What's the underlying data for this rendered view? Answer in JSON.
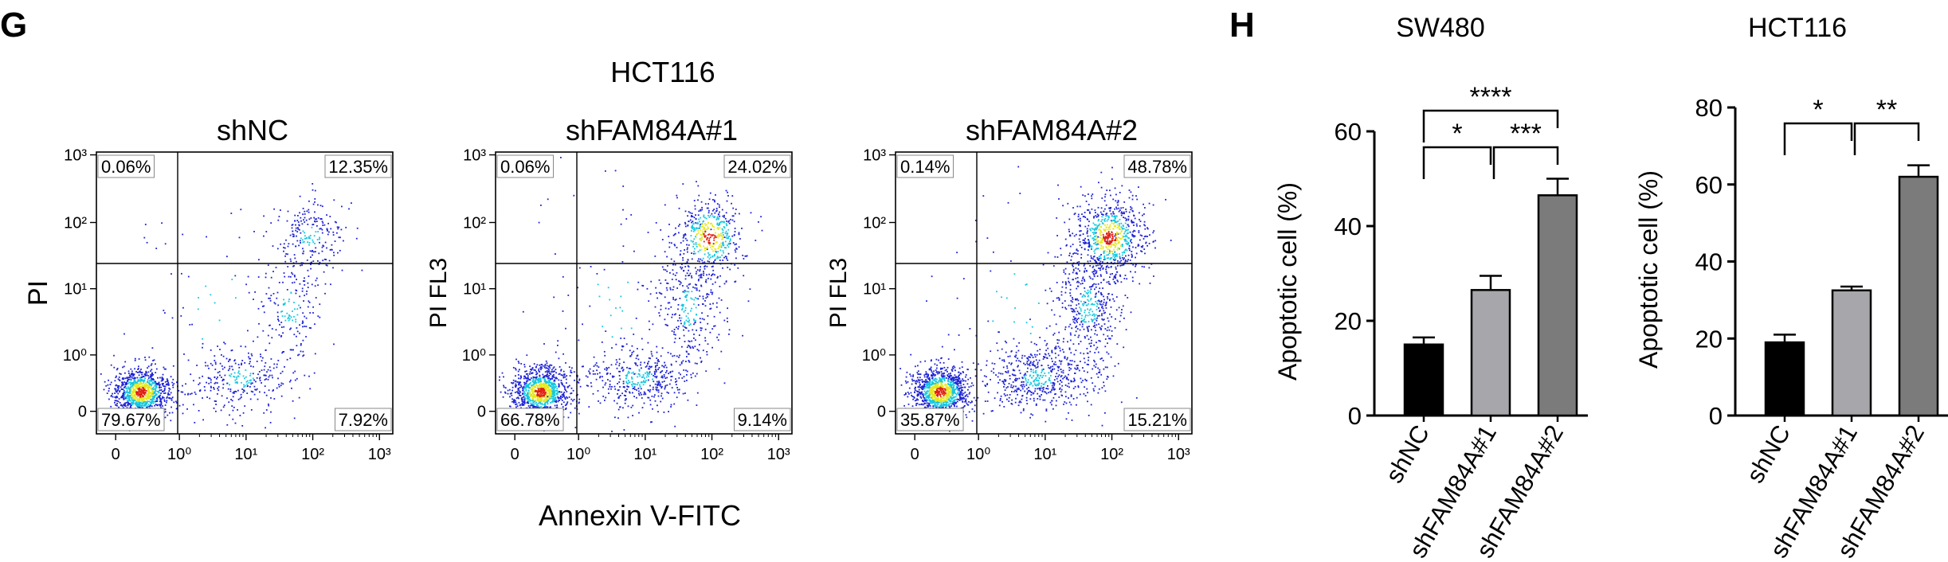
{
  "panel_g": {
    "label": "G",
    "group_title": "HCT116",
    "xlabel": "Annexin V-FITC",
    "x_tick_labels": [
      "0",
      "10⁰",
      "10¹",
      "10²",
      "10³"
    ],
    "y_tick_labels": [
      "0",
      "10⁰",
      "10¹",
      "10²",
      "10³"
    ],
    "plots": [
      {
        "title": "shNC",
        "ylabel": "PI",
        "quadrants": {
          "top_left": "0.06%",
          "top_right": "12.35%",
          "bottom_left": "79.67%",
          "bottom_right": "7.92%"
        }
      },
      {
        "title": "shFAM84A#1",
        "ylabel": "PI FL3",
        "quadrants": {
          "top_left": "0.06%",
          "top_right": "24.02%",
          "bottom_left": "66.78%",
          "bottom_right": "9.14%"
        }
      },
      {
        "title": "shFAM84A#2",
        "ylabel": "PI FL3",
        "quadrants": {
          "top_left": "0.14%",
          "top_right": "48.78%",
          "bottom_left": "35.87%",
          "bottom_right": "15.21%"
        }
      }
    ]
  },
  "panel_h": {
    "label": "H"
  },
  "colors": {
    "shNC": "#000000",
    "shFAM84A#1": "#a7a7ab",
    "shFAM84A#2": "#7b7b7b",
    "dot_low": "#1e22d4",
    "dot_mid": "#12c8e0",
    "dot_high": "#e6e81e",
    "dot_peak": "#e01e12"
  },
  "chart_data": [
    {
      "type": "bar",
      "title": "SW480",
      "ylabel": "Apoptotic cell (%)",
      "categories": [
        "shNC",
        "shFAM84A#1",
        "shFAM84A#2"
      ],
      "values": [
        15,
        26.5,
        46.5
      ],
      "errors": [
        1.5,
        3,
        3.5
      ],
      "ylim": [
        0,
        60
      ],
      "yticks": [
        "0",
        "20",
        "40",
        "60"
      ],
      "significance": [
        {
          "from": 0,
          "to": 1,
          "label": "*"
        },
        {
          "from": 1,
          "to": 2,
          "label": "***"
        },
        {
          "from": 0,
          "to": 2,
          "label": "****"
        }
      ]
    },
    {
      "type": "bar",
      "title": "HCT116",
      "ylabel": "Apoptotic cell (%)",
      "categories": [
        "shNC",
        "shFAM84A#1",
        "shFAM84A#2"
      ],
      "values": [
        19,
        32.5,
        62
      ],
      "errors": [
        2,
        1,
        3
      ],
      "ylim": [
        0,
        80
      ],
      "yticks": [
        "0",
        "20",
        "40",
        "60",
        "80"
      ],
      "significance": [
        {
          "from": 0,
          "to": 1,
          "label": "*"
        },
        {
          "from": 1,
          "to": 2,
          "label": "**"
        }
      ]
    }
  ]
}
